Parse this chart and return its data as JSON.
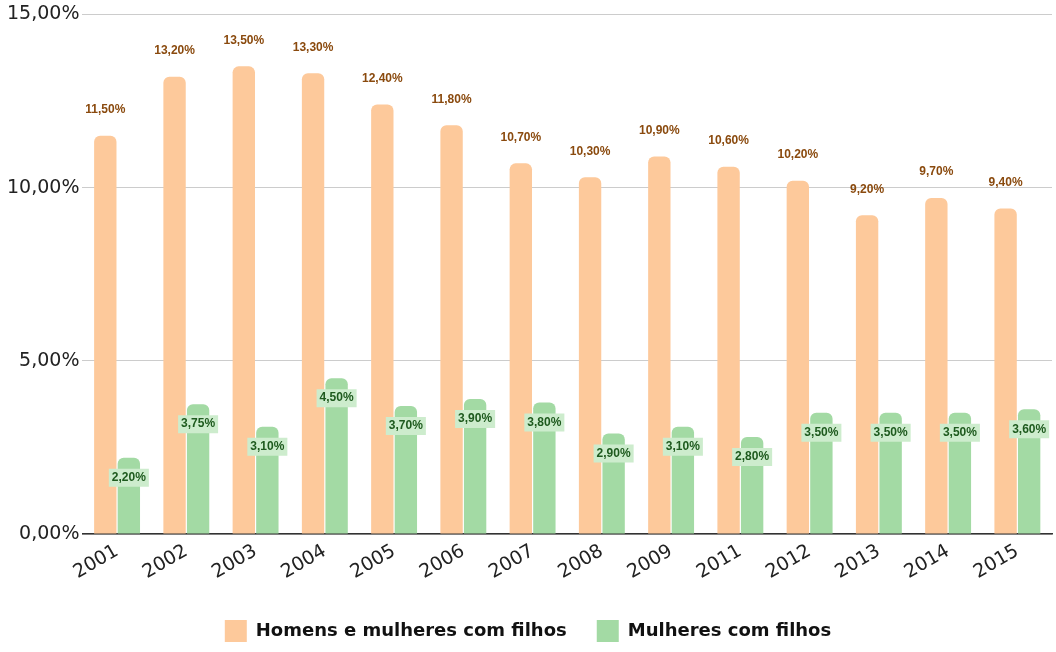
{
  "chart_data": {
    "type": "bar",
    "categories": [
      "2001",
      "2002",
      "2003",
      "2004",
      "2005",
      "2006",
      "2007",
      "2008",
      "2009",
      "2011",
      "2012",
      "2013",
      "2014",
      "2015"
    ],
    "series": [
      {
        "name": "Homens e mulheres com filhos",
        "color": "#fdc99b",
        "values": [
          11.5,
          13.2,
          13.5,
          13.3,
          12.4,
          11.8,
          10.7,
          10.3,
          10.9,
          10.6,
          10.2,
          9.2,
          9.7,
          9.4
        ],
        "value_labels": [
          "11,50%",
          "13,20%",
          "13,50%",
          "13,30%",
          "12,40%",
          "11,80%",
          "10,70%",
          "10,30%",
          "10,90%",
          "10,60%",
          "10,20%",
          "9,20%",
          "9,70%",
          "9,40%"
        ]
      },
      {
        "name": "Mulheres com filhos",
        "color": "#a3daa4",
        "values": [
          2.2,
          3.75,
          3.1,
          4.5,
          3.7,
          3.9,
          3.8,
          2.9,
          3.1,
          2.8,
          3.5,
          3.5,
          3.5,
          3.6
        ],
        "value_labels": [
          "2,20%",
          "3,75%",
          "3,10%",
          "4,50%",
          "3,70%",
          "3,90%",
          "3,80%",
          "2,90%",
          "3,10%",
          "2,80%",
          "3,50%",
          "3,50%",
          "3,50%",
          "3,60%"
        ]
      }
    ],
    "ylim": [
      0,
      15
    ],
    "yticks": [
      {
        "value": 0,
        "label": "0,00%"
      },
      {
        "value": 5,
        "label": "5,00%"
      },
      {
        "value": 10,
        "label": "10,00%"
      },
      {
        "value": 15,
        "label": "15,00%"
      }
    ],
    "grid": "y",
    "legend": "bottom"
  }
}
